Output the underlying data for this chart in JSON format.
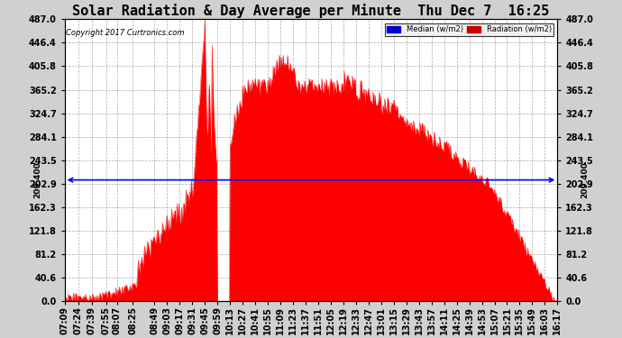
{
  "title": "Solar Radiation & Day Average per Minute  Thu Dec 7  16:25",
  "copyright": "Copyright 2017 Curtronics.com",
  "median_value": 209.4,
  "median_label": "209.400",
  "ymax": 487.0,
  "yticks": [
    0.0,
    40.6,
    81.2,
    121.8,
    162.3,
    202.9,
    243.5,
    284.1,
    324.7,
    365.2,
    405.8,
    446.4,
    487.0
  ],
  "ytick_labels": [
    "0.0",
    "40.6",
    "81.2",
    "121.8",
    "162.3",
    "202.9",
    "243.5",
    "284.1",
    "324.7",
    "365.2",
    "405.8",
    "446.4",
    "487.0"
  ],
  "background_color": "#d0d0d0",
  "plot_bg_color": "#ffffff",
  "fill_color": "#ff0000",
  "median_color": "#0000ff",
  "legend_median_color": "#0000cc",
  "legend_radiation_color": "#cc0000",
  "title_fontsize": 11,
  "tick_fontsize": 7,
  "t_start": "07:09",
  "t_end": "16:17",
  "x_tick_labels": [
    "07:09",
    "07:24",
    "07:39",
    "07:55",
    "08:07",
    "08:25",
    "08:49",
    "09:03",
    "09:17",
    "09:31",
    "09:45",
    "09:59",
    "10:13",
    "10:27",
    "10:41",
    "10:55",
    "11:09",
    "11:23",
    "11:37",
    "11:51",
    "12:05",
    "12:19",
    "12:33",
    "12:47",
    "13:01",
    "13:15",
    "13:29",
    "13:43",
    "13:57",
    "14:11",
    "14:25",
    "14:39",
    "14:53",
    "15:07",
    "15:21",
    "15:35",
    "15:49",
    "16:03",
    "16:17"
  ]
}
